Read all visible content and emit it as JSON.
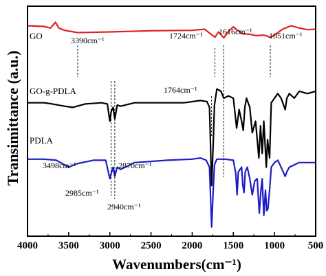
{
  "chart_data": {
    "type": "line",
    "xlabel": "Wavenumbers(cm⁻¹)",
    "ylabel": "Transimittance (a.u.)",
    "xlim": [
      4000,
      500
    ],
    "x_reversed": true,
    "x_tick_labels": [
      "4000",
      "3500",
      "3000",
      "2500",
      "2000",
      "1500",
      "1000",
      "500"
    ],
    "x_ticks": [
      4000,
      3500,
      3000,
      2500,
      2000,
      1500,
      1000,
      500
    ],
    "grid": false,
    "series": [
      {
        "name": "GO",
        "color": "#e02020",
        "points": [
          [
            4000,
            0.915
          ],
          [
            3800,
            0.912
          ],
          [
            3720,
            0.905
          ],
          [
            3660,
            0.93
          ],
          [
            3620,
            0.905
          ],
          [
            3550,
            0.895
          ],
          [
            3390,
            0.885
          ],
          [
            3000,
            0.888
          ],
          [
            2500,
            0.893
          ],
          [
            2000,
            0.895
          ],
          [
            1850,
            0.9
          ],
          [
            1724,
            0.865
          ],
          [
            1680,
            0.888
          ],
          [
            1616,
            0.862
          ],
          [
            1560,
            0.89
          ],
          [
            1500,
            0.91
          ],
          [
            1450,
            0.895
          ],
          [
            1390,
            0.88
          ],
          [
            1300,
            0.878
          ],
          [
            1220,
            0.872
          ],
          [
            1150,
            0.874
          ],
          [
            1100,
            0.872
          ],
          [
            1051,
            0.864
          ],
          [
            1000,
            0.875
          ],
          [
            900,
            0.9
          ],
          [
            800,
            0.915
          ],
          [
            700,
            0.905
          ],
          [
            600,
            0.898
          ],
          [
            500,
            0.9
          ]
        ]
      },
      {
        "name": "GO-g-PDLA",
        "color": "#000000",
        "points": [
          [
            4000,
            0.58
          ],
          [
            3800,
            0.58
          ],
          [
            3700,
            0.575
          ],
          [
            3550,
            0.565
          ],
          [
            3450,
            0.56
          ],
          [
            3300,
            0.575
          ],
          [
            3100,
            0.58
          ],
          [
            3030,
            0.575
          ],
          [
            3000,
            0.5
          ],
          [
            2985,
            0.54
          ],
          [
            2960,
            0.56
          ],
          [
            2940,
            0.51
          ],
          [
            2910,
            0.57
          ],
          [
            2870,
            0.565
          ],
          [
            2700,
            0.58
          ],
          [
            2400,
            0.58
          ],
          [
            2100,
            0.58
          ],
          [
            1900,
            0.59
          ],
          [
            1820,
            0.585
          ],
          [
            1790,
            0.56
          ],
          [
            1764,
            0.22
          ],
          [
            1745,
            0.4
          ],
          [
            1730,
            0.57
          ],
          [
            1700,
            0.64
          ],
          [
            1650,
            0.63
          ],
          [
            1616,
            0.6
          ],
          [
            1560,
            0.61
          ],
          [
            1500,
            0.6
          ],
          [
            1460,
            0.47
          ],
          [
            1430,
            0.55
          ],
          [
            1400,
            0.5
          ],
          [
            1380,
            0.46
          ],
          [
            1360,
            0.56
          ],
          [
            1340,
            0.6
          ],
          [
            1300,
            0.56
          ],
          [
            1270,
            0.45
          ],
          [
            1230,
            0.5
          ],
          [
            1190,
            0.34
          ],
          [
            1170,
            0.48
          ],
          [
            1150,
            0.36
          ],
          [
            1130,
            0.5
          ],
          [
            1100,
            0.3
          ],
          [
            1085,
            0.42
          ],
          [
            1060,
            0.34
          ],
          [
            1040,
            0.58
          ],
          [
            1000,
            0.6
          ],
          [
            960,
            0.62
          ],
          [
            920,
            0.6
          ],
          [
            870,
            0.55
          ],
          [
            850,
            0.6
          ],
          [
            820,
            0.62
          ],
          [
            760,
            0.6
          ],
          [
            700,
            0.63
          ],
          [
            600,
            0.62
          ],
          [
            500,
            0.63
          ]
        ]
      },
      {
        "name": "PDLA",
        "color": "#1c1cc8",
        "points": [
          [
            4000,
            0.335
          ],
          [
            3800,
            0.335
          ],
          [
            3650,
            0.33
          ],
          [
            3550,
            0.31
          ],
          [
            3498,
            0.3
          ],
          [
            3400,
            0.315
          ],
          [
            3200,
            0.33
          ],
          [
            3050,
            0.33
          ],
          [
            3000,
            0.25
          ],
          [
            2985,
            0.27
          ],
          [
            2960,
            0.3
          ],
          [
            2940,
            0.26
          ],
          [
            2910,
            0.3
          ],
          [
            2870,
            0.29
          ],
          [
            2700,
            0.32
          ],
          [
            2300,
            0.33
          ],
          [
            2000,
            0.335
          ],
          [
            1900,
            0.34
          ],
          [
            1830,
            0.33
          ],
          [
            1790,
            0.3
          ],
          [
            1764,
            0.04
          ],
          [
            1745,
            0.2
          ],
          [
            1730,
            0.31
          ],
          [
            1700,
            0.335
          ],
          [
            1600,
            0.335
          ],
          [
            1500,
            0.33
          ],
          [
            1470,
            0.27
          ],
          [
            1455,
            0.18
          ],
          [
            1440,
            0.28
          ],
          [
            1400,
            0.3
          ],
          [
            1385,
            0.22
          ],
          [
            1370,
            0.19
          ],
          [
            1355,
            0.28
          ],
          [
            1330,
            0.3
          ],
          [
            1300,
            0.25
          ],
          [
            1270,
            0.18
          ],
          [
            1240,
            0.24
          ],
          [
            1210,
            0.25
          ],
          [
            1185,
            0.1
          ],
          [
            1165,
            0.2
          ],
          [
            1150,
            0.25
          ],
          [
            1130,
            0.09
          ],
          [
            1110,
            0.2
          ],
          [
            1095,
            0.11
          ],
          [
            1080,
            0.12
          ],
          [
            1060,
            0.2
          ],
          [
            1040,
            0.3
          ],
          [
            1000,
            0.32
          ],
          [
            960,
            0.33
          ],
          [
            920,
            0.3
          ],
          [
            870,
            0.26
          ],
          [
            850,
            0.28
          ],
          [
            820,
            0.3
          ],
          [
            760,
            0.31
          ],
          [
            700,
            0.32
          ],
          [
            600,
            0.32
          ],
          [
            500,
            0.32
          ]
        ]
      }
    ],
    "annotations": [
      {
        "text": "3390cm⁻¹",
        "x": 3390
      },
      {
        "text": "1724cm⁻¹",
        "x": 1724
      },
      {
        "text": "1616cm⁻¹",
        "x": 1616
      },
      {
        "text": "1051cm⁻¹",
        "x": 1051
      },
      {
        "text": "1764cm⁻¹",
        "x": 1764
      },
      {
        "text": "3498cm⁻¹",
        "x": 3498
      },
      {
        "text": "2985cm⁻¹",
        "x": 2985
      },
      {
        "text": "2940cm⁻¹",
        "x": 2940
      },
      {
        "text": "2870cm⁻¹",
        "x": 2870
      }
    ],
    "series_labels": [
      "GO",
      "GO-g-PDLA",
      "PDLA"
    ]
  }
}
